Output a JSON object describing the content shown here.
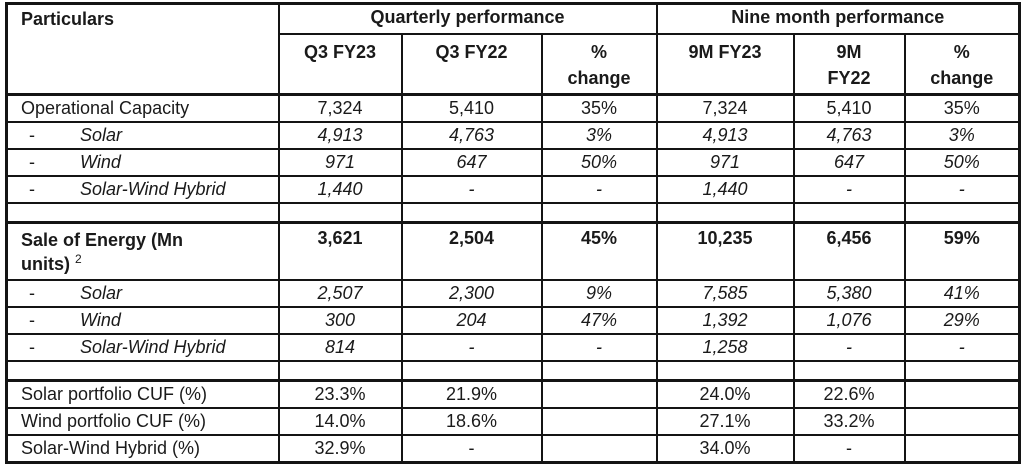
{
  "colors": {
    "background": "#ffffff",
    "border": "#141414",
    "text": "#1a1a1a"
  },
  "table": {
    "header": {
      "particulars": "Particulars",
      "groups": [
        {
          "label": "Quarterly performance"
        },
        {
          "label": "Nine month performance"
        }
      ],
      "columns": [
        "Q3 FY23",
        "Q3 FY22",
        "%\nchange",
        "9M FY23",
        "9M\nFY22",
        "%\nchange"
      ]
    },
    "rows": [
      {
        "type": "data",
        "style": "normal",
        "label": "Operational Capacity",
        "values": [
          "7,324",
          "5,410",
          "35%",
          "7,324",
          "5,410",
          "35%"
        ]
      },
      {
        "type": "data",
        "style": "sub",
        "bullet": "-",
        "label": "Solar",
        "values": [
          "4,913",
          "4,763",
          "3%",
          "4,913",
          "4,763",
          "3%"
        ]
      },
      {
        "type": "data",
        "style": "sub",
        "bullet": "-",
        "label": "Wind",
        "values": [
          "971",
          "647",
          "50%",
          "971",
          "647",
          "50%"
        ]
      },
      {
        "type": "data",
        "style": "sub",
        "bullet": "-",
        "label": "Solar-Wind Hybrid",
        "values": [
          "1,440",
          "-",
          "-",
          "1,440",
          "-",
          "-"
        ]
      },
      {
        "type": "spacer"
      },
      {
        "type": "data",
        "style": "bold",
        "section_start": true,
        "label": "Sale of Energy (Mn units)",
        "superscript": "2",
        "values": [
          "3,621",
          "2,504",
          "45%",
          "10,235",
          "6,456",
          "59%"
        ]
      },
      {
        "type": "data",
        "style": "sub",
        "bullet": "-",
        "label": "Solar",
        "values": [
          "2,507",
          "2,300",
          "9%",
          "7,585",
          "5,380",
          "41%"
        ]
      },
      {
        "type": "data",
        "style": "sub",
        "bullet": "-",
        "label": "Wind",
        "values": [
          "300",
          "204",
          "47%",
          "1,392",
          "1,076",
          "29%"
        ]
      },
      {
        "type": "data",
        "style": "sub",
        "bullet": "-",
        "label": "Solar-Wind Hybrid",
        "values": [
          "814",
          "-",
          "-",
          "1,258",
          "-",
          "-"
        ]
      },
      {
        "type": "spacer"
      },
      {
        "type": "data",
        "style": "normal",
        "section_start": true,
        "label": "Solar portfolio CUF (%)",
        "values": [
          "23.3%",
          "21.9%",
          "",
          "24.0%",
          "22.6%",
          ""
        ]
      },
      {
        "type": "data",
        "style": "normal",
        "label": "Wind portfolio CUF (%)",
        "values": [
          "14.0%",
          "18.6%",
          "",
          "27.1%",
          "33.2%",
          ""
        ]
      },
      {
        "type": "data",
        "style": "normal",
        "label": "Solar-Wind Hybrid (%)",
        "values": [
          "32.9%",
          "-",
          "",
          "34.0%",
          "-",
          ""
        ]
      }
    ]
  }
}
